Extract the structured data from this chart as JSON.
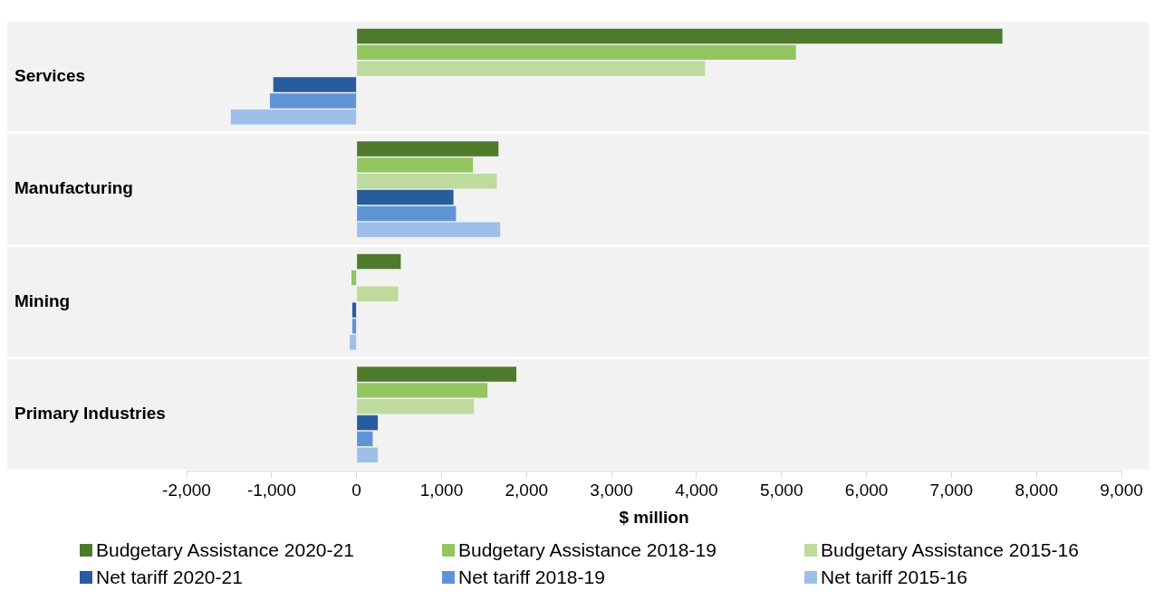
{
  "chart_data": {
    "type": "bar",
    "orientation": "horizontal",
    "categories": [
      "Services",
      "Manufacturing",
      "Mining",
      "Primary Industries"
    ],
    "series": [
      {
        "name": "Budgetary Assistance 2020-21",
        "color": "#4e7a2c",
        "values": [
          7600,
          1670,
          520,
          1880
        ]
      },
      {
        "name": "Budgetary Assistance 2018-19",
        "color": "#92c560",
        "values": [
          5170,
          1370,
          -60,
          1540
        ]
      },
      {
        "name": "Budgetary Assistance 2015-16",
        "color": "#bddb9c",
        "values": [
          4100,
          1650,
          490,
          1380
        ]
      },
      {
        "name": "Net tariff 2020-21",
        "color": "#275d9c",
        "values": [
          -980,
          1140,
          -50,
          250
        ]
      },
      {
        "name": "Net tariff 2018-19",
        "color": "#5e94d6",
        "values": [
          -1020,
          1170,
          -50,
          190
        ]
      },
      {
        "name": "Net tariff 2015-16",
        "color": "#9fbfe8",
        "values": [
          -1480,
          1690,
          -80,
          250
        ]
      }
    ],
    "xlim": [
      -2000,
      9000
    ],
    "xticks": [
      {
        "value": -2000,
        "label": "-2,000"
      },
      {
        "value": -1000,
        "label": "-1,000"
      },
      {
        "value": 0,
        "label": "0"
      },
      {
        "value": 1000,
        "label": "1,000"
      },
      {
        "value": 2000,
        "label": "2,000"
      },
      {
        "value": 3000,
        "label": "3,000"
      },
      {
        "value": 4000,
        "label": "4,000"
      },
      {
        "value": 5000,
        "label": "5,000"
      },
      {
        "value": 6000,
        "label": "6,000"
      },
      {
        "value": 7000,
        "label": "7,000"
      },
      {
        "value": 8000,
        "label": "8,000"
      },
      {
        "value": 9000,
        "label": "9,000"
      }
    ],
    "xlabel": "$ million",
    "grid": false,
    "legend": "bottom"
  }
}
